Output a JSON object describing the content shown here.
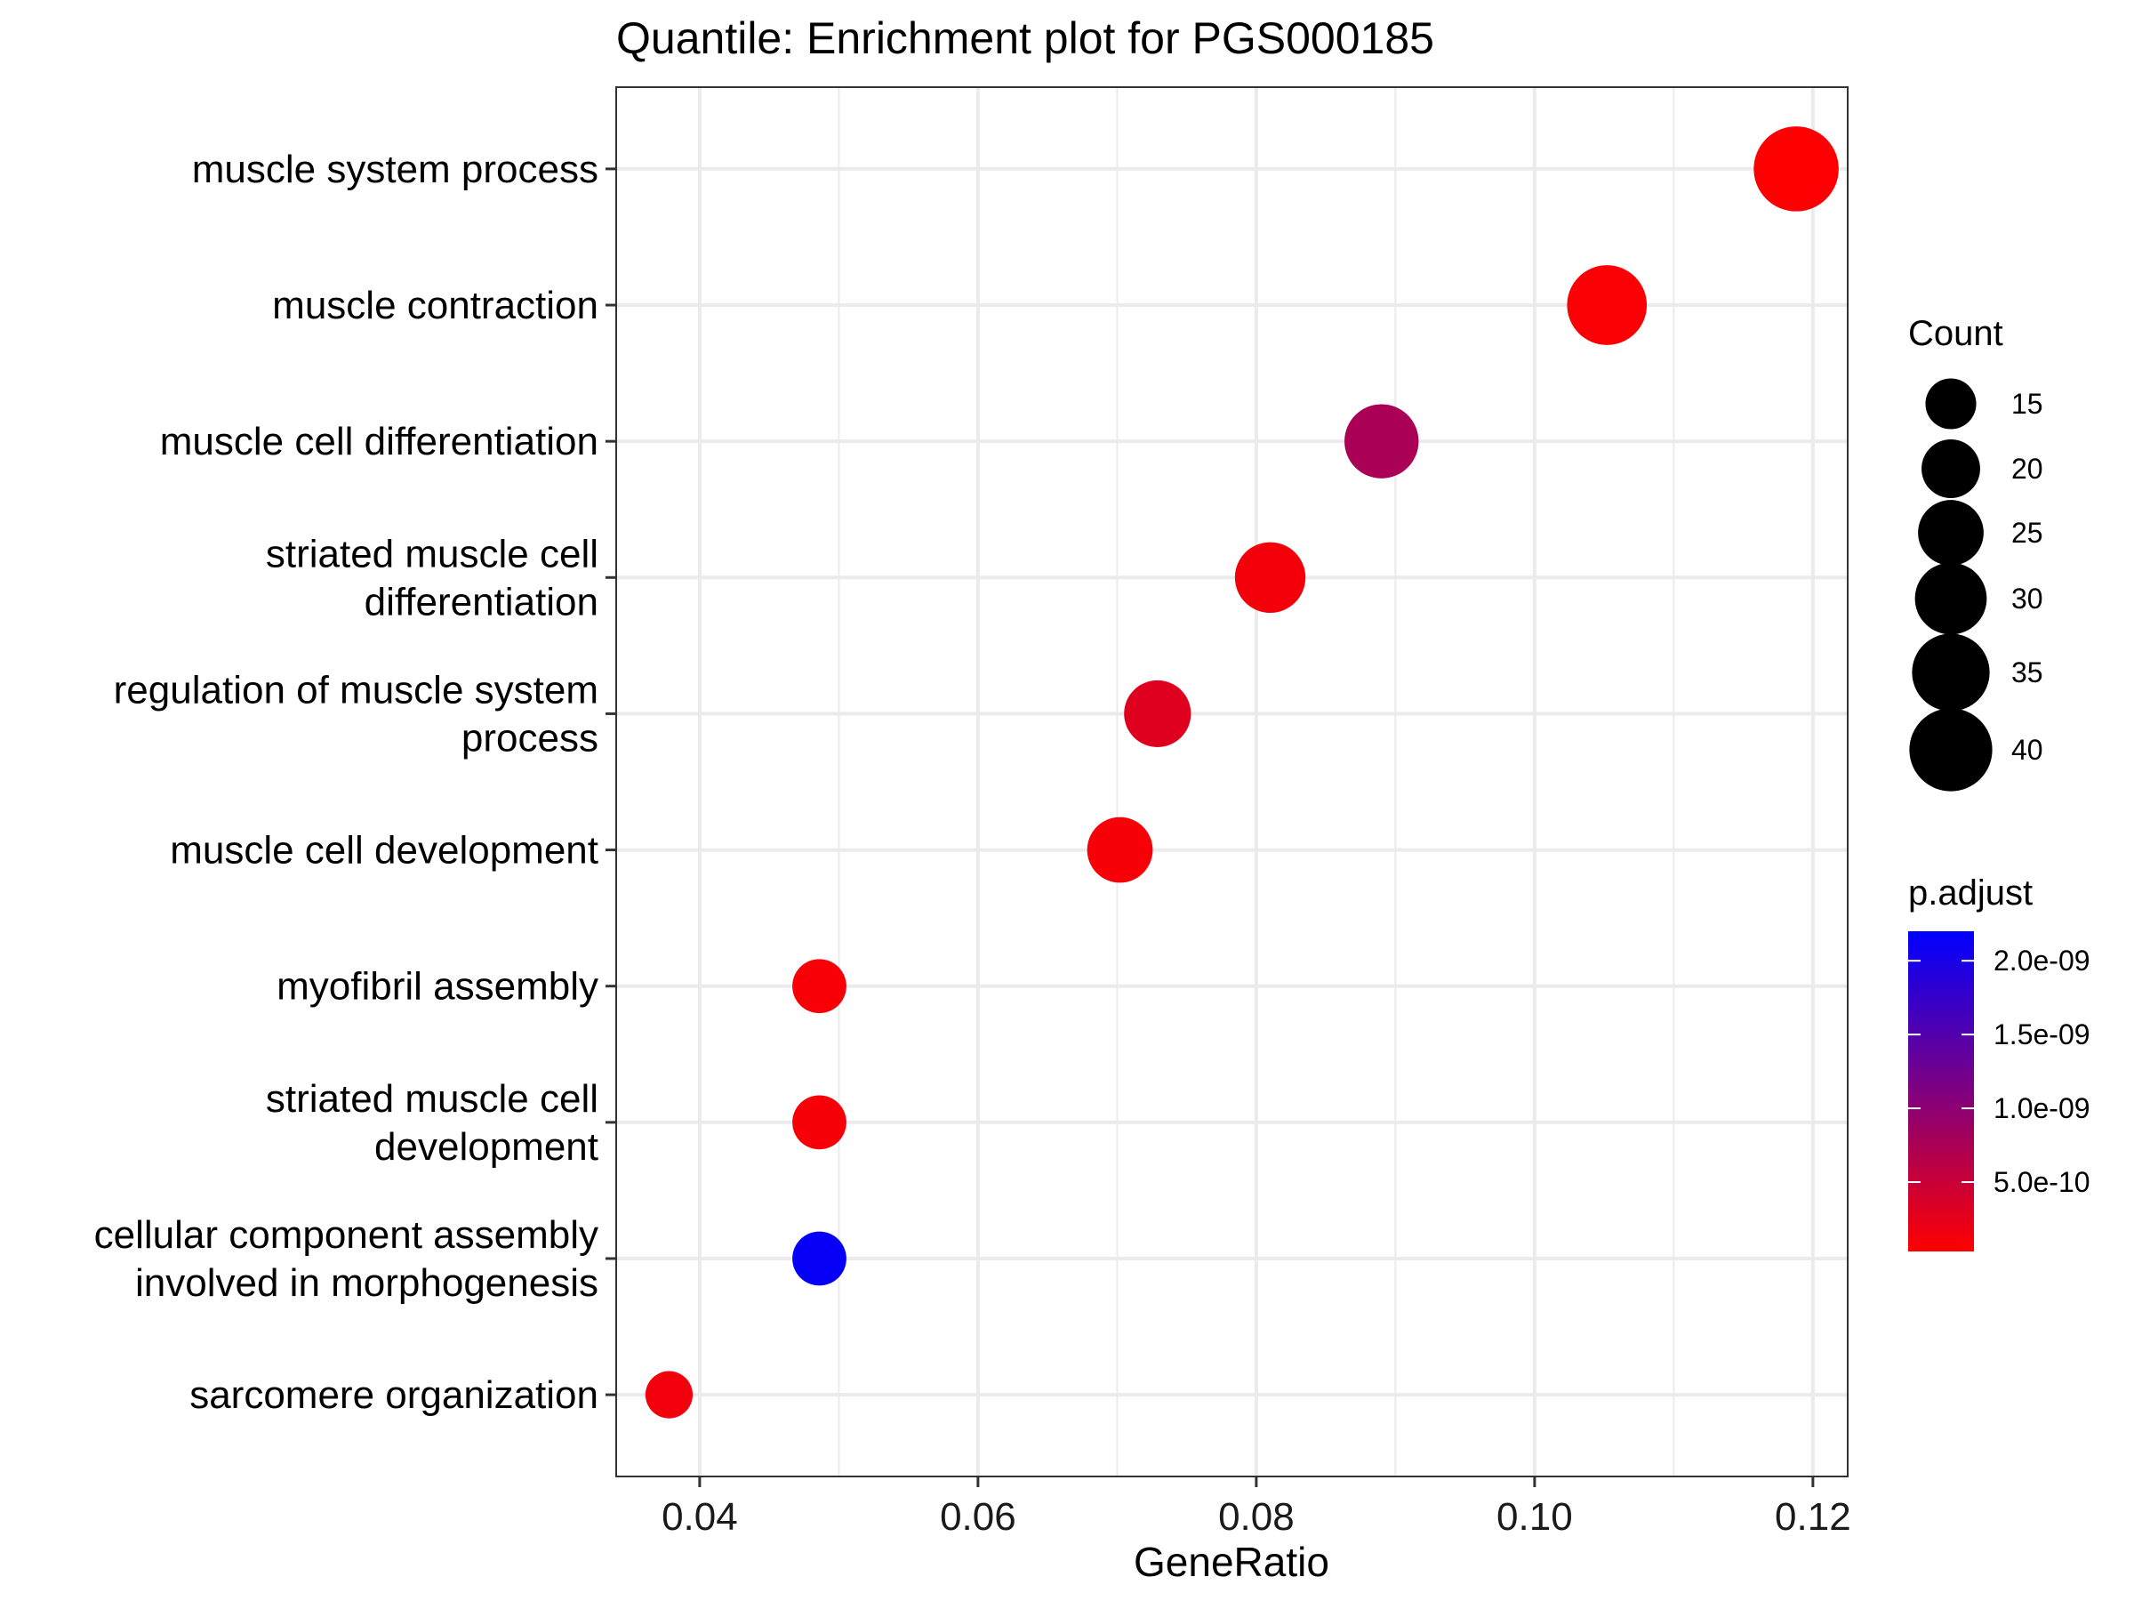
{
  "chart_data": {
    "type": "scatter",
    "title": "Quantile: Enrichment plot for PGS000185",
    "xlabel": "GeneRatio",
    "ylabel": "",
    "xlim": [
      0.034,
      0.1225
    ],
    "xticks": [
      0.04,
      0.06,
      0.08,
      0.1,
      0.12
    ],
    "xtick_labels": [
      "0.04",
      "0.06",
      "0.08",
      "0.10",
      "0.12"
    ],
    "grid": true,
    "terms": [
      {
        "label": "muscle system process",
        "lines": [
          "muscle system process"
        ],
        "gene_ratio": 0.1188,
        "count": 42,
        "p_adjust": 5e-11
      },
      {
        "label": "muscle contraction",
        "lines": [
          "muscle contraction"
        ],
        "gene_ratio": 0.1052,
        "count": 37,
        "p_adjust": 6e-11
      },
      {
        "label": "muscle cell differentiation",
        "lines": [
          "muscle cell differentiation"
        ],
        "gene_ratio": 0.089,
        "count": 32,
        "p_adjust": 7.5e-10
      },
      {
        "label": "striated muscle cell differentiation",
        "lines": [
          "striated muscle cell",
          "differentiation"
        ],
        "gene_ratio": 0.081,
        "count": 29,
        "p_adjust": 1.2e-10
      },
      {
        "label": "regulation of muscle system process",
        "lines": [
          "regulation of muscle system",
          "process"
        ],
        "gene_ratio": 0.0729,
        "count": 26,
        "p_adjust": 3e-10
      },
      {
        "label": "muscle cell development",
        "lines": [
          "muscle cell development"
        ],
        "gene_ratio": 0.0702,
        "count": 25,
        "p_adjust": 1e-10
      },
      {
        "label": "myofibril assembly",
        "lines": [
          "myofibril assembly"
        ],
        "gene_ratio": 0.0486,
        "count": 17,
        "p_adjust": 8e-11
      },
      {
        "label": "striated muscle cell development",
        "lines": [
          "striated muscle cell",
          "development"
        ],
        "gene_ratio": 0.0486,
        "count": 17,
        "p_adjust": 1e-10
      },
      {
        "label": "cellular component assembly involved in morphogenesis",
        "lines": [
          "cellular component assembly",
          "involved in morphogenesis"
        ],
        "gene_ratio": 0.0486,
        "count": 17,
        "p_adjust": 2.15e-09
      },
      {
        "label": "sarcomere organization",
        "lines": [
          "sarcomere organization"
        ],
        "gene_ratio": 0.0378,
        "count": 13,
        "p_adjust": 1.3e-10
      }
    ],
    "legend_size": {
      "title": "Count",
      "breaks": [
        15,
        20,
        25,
        30,
        35,
        40
      ],
      "labels": [
        "15",
        "20",
        "25",
        "30",
        "35",
        "40"
      ]
    },
    "legend_color": {
      "title": "p.adjust",
      "low_color": "#ff0000",
      "high_color": "#0000ff",
      "range": [
        3e-11,
        2.2e-09
      ],
      "breaks": [
        2e-09,
        1.5e-09,
        1e-09,
        5e-10
      ],
      "labels": [
        "2.0e-09",
        "1.5e-09",
        "1.0e-09",
        "5.0e-10"
      ]
    },
    "legend_position": "right"
  }
}
